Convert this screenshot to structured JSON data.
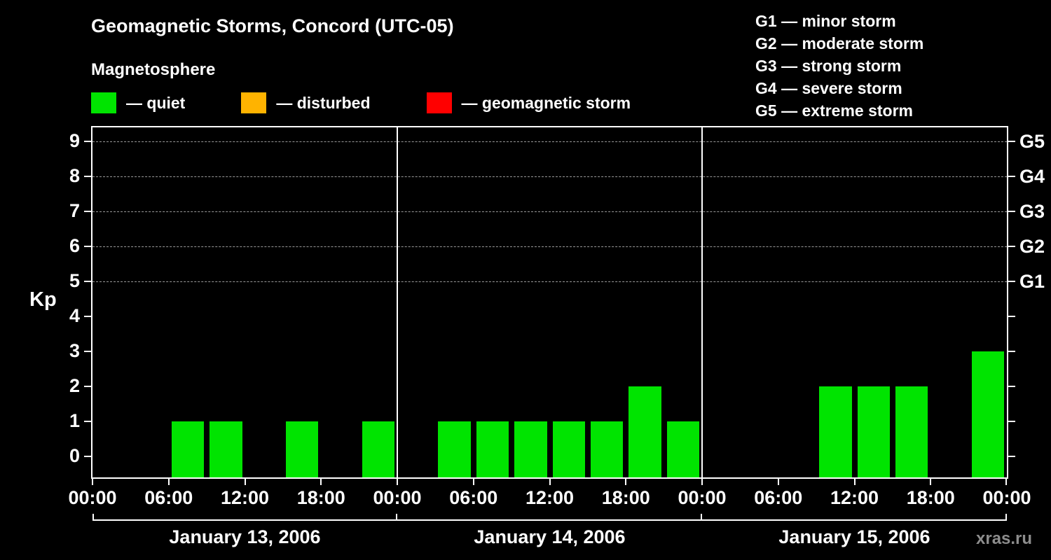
{
  "header": {
    "title": "Geomagnetic Storms, Concord (UTC-05)",
    "subtitle": "Magnetosphere"
  },
  "legend": {
    "items": [
      {
        "label": "— quiet",
        "color": "#00e400"
      },
      {
        "label": "— disturbed",
        "color": "#ffb300"
      },
      {
        "label": "— geomagnetic storm",
        "color": "#ff0000"
      }
    ]
  },
  "storm_scale": [
    "G1 — minor storm",
    "G2 — moderate storm",
    "G3 — strong storm",
    "G4 — severe storm",
    "G5 — extreme storm"
  ],
  "watermark": "xras.ru",
  "chart_data": {
    "type": "bar",
    "title": "Geomagnetic Storms, Concord (UTC-05)",
    "subtitle": "Magnetosphere",
    "ylabel": "Kp",
    "ylim": [
      0,
      9.6
    ],
    "yticks": [
      0,
      1,
      2,
      3,
      4,
      5,
      6,
      7,
      8,
      9
    ],
    "grid": "dashed horizontal at Kp 5-9",
    "right_axis": [
      {
        "kp": 5,
        "label": "G1"
      },
      {
        "kp": 6,
        "label": "G2"
      },
      {
        "kp": 7,
        "label": "G3"
      },
      {
        "kp": 8,
        "label": "G4"
      },
      {
        "kp": 9,
        "label": "G5"
      }
    ],
    "colors": {
      "quiet": "#00e400",
      "disturbed": "#ffb300",
      "storm": "#ff0000"
    },
    "time_labels": [
      "00:00",
      "06:00",
      "12:00",
      "18:00"
    ],
    "end_time_label": "00:00",
    "interval_hours": 3,
    "days": [
      {
        "date": "January 13, 2006",
        "values": [
          0,
          0,
          1,
          1,
          0,
          1,
          0,
          1
        ]
      },
      {
        "date": "January 14, 2006",
        "values": [
          0,
          1,
          1,
          1,
          1,
          1,
          2,
          1
        ]
      },
      {
        "date": "January 15, 2006",
        "values": [
          0,
          0,
          0,
          2,
          2,
          2,
          0,
          3
        ]
      }
    ]
  }
}
